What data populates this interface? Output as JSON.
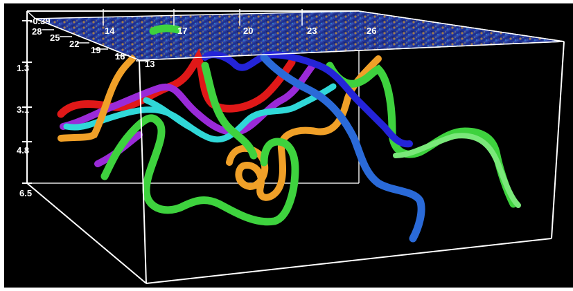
{
  "scene": {
    "background": "#000000",
    "box_color": "#ffffff",
    "slice_colors": [
      "#1d2f8a",
      "#e0a020",
      "#2a6fb0",
      "#c0c030"
    ]
  },
  "depth_axis": {
    "ticks": [
      "-0.39",
      "1.3",
      "3.1",
      "4.8",
      "6.5"
    ]
  },
  "x_axis": {
    "ticks": [
      "14",
      "17",
      "20",
      "23",
      "26"
    ]
  },
  "y_axis": {
    "ticks": [
      "28",
      "25",
      "22",
      "19",
      "16",
      "13"
    ]
  },
  "tubes": [
    {
      "name": "red",
      "color": "#e01818"
    },
    {
      "name": "purple",
      "color": "#9a2ad8"
    },
    {
      "name": "cyan",
      "color": "#30d8d8"
    },
    {
      "name": "orange",
      "color": "#f0a028"
    },
    {
      "name": "green",
      "color": "#3ed23e"
    },
    {
      "name": "blue",
      "color": "#2424d8"
    },
    {
      "name": "steel",
      "color": "#2a6ad8"
    }
  ]
}
